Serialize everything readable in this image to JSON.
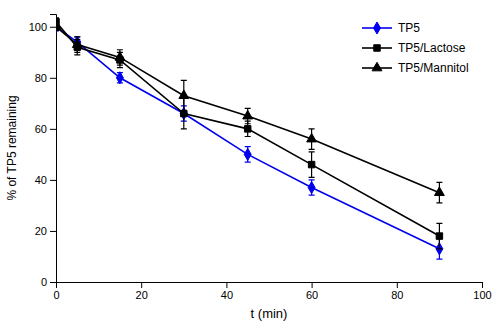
{
  "chart_data": {
    "type": "line",
    "xlabel": "t (min)",
    "ylabel": "% of TP5 remaining",
    "x": [
      0,
      5,
      15,
      30,
      45,
      60,
      90
    ],
    "series": [
      {
        "name": "TP5",
        "color": "#0000ee",
        "marker": "diamond",
        "values": [
          100,
          94,
          80,
          66,
          50,
          37,
          13
        ],
        "errors": [
          1.5,
          2,
          2,
          3,
          3,
          3,
          4
        ]
      },
      {
        "name": "TP5/Lactose",
        "color": "#000000",
        "marker": "square",
        "values": [
          102,
          92,
          87,
          66,
          60,
          46,
          18
        ],
        "errors": [
          1.5,
          3,
          3,
          6,
          3,
          5,
          5
        ]
      },
      {
        "name": "TP5/Mannitol",
        "color": "#000000",
        "marker": "triangle",
        "values": [
          100,
          93,
          88,
          73,
          65,
          56,
          35
        ],
        "errors": [
          1.5,
          3,
          3,
          6,
          3,
          4,
          4
        ]
      }
    ],
    "xlim": [
      0,
      100
    ],
    "ylim": [
      0,
      105
    ],
    "xticks": [
      0,
      20,
      40,
      60,
      80,
      100
    ],
    "yticks": [
      0,
      20,
      40,
      60,
      80,
      100
    ],
    "grid": false,
    "legend": "upper right"
  }
}
